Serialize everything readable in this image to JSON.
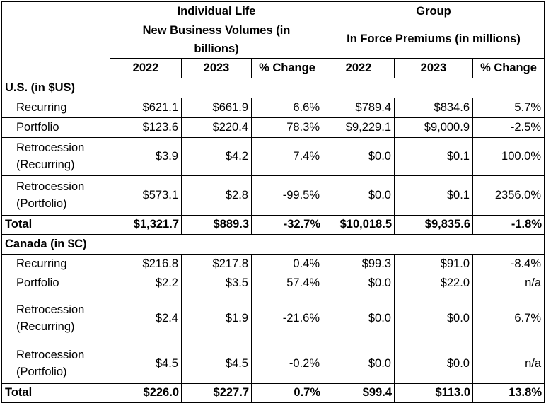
{
  "header": {
    "individual_title": "Individual Life",
    "individual_subtitle_line1": "New Business Volumes (in",
    "individual_subtitle_line2": "billions)",
    "group_title": "Group",
    "group_subtitle": "In Force Premiums (in millions)",
    "col_2022": "2022",
    "col_2023": "2023",
    "col_change": "% Change"
  },
  "us": {
    "heading": "U.S. (in $US)",
    "rows": [
      {
        "label1": "Recurring",
        "label2": "",
        "v": [
          "$621.1",
          "$661.9",
          "6.6%",
          "$789.4",
          "$834.6",
          "5.7%"
        ]
      },
      {
        "label1": "Portfolio",
        "label2": "",
        "v": [
          "$123.6",
          "$220.4",
          "78.3%",
          "$9,229.1",
          "$9,000.9",
          "-2.5%"
        ]
      },
      {
        "label1": "Retrocession",
        "label2": "(Recurring)",
        "v": [
          "$3.9",
          "$4.2",
          "7.4%",
          "$0.0",
          "$0.1",
          "100.0%"
        ]
      },
      {
        "label1": "Retrocession",
        "label2": "(Portfolio)",
        "v": [
          "$573.1",
          "$2.8",
          "-99.5%",
          "$0.0",
          "$0.1",
          "2356.0%"
        ]
      }
    ],
    "total": {
      "label": "Total",
      "v": [
        "$1,321.7",
        "$889.3",
        "-32.7%",
        "$10,018.5",
        "$9,835.6",
        "-1.8%"
      ]
    }
  },
  "canada": {
    "heading": "Canada (in $C)",
    "rows": [
      {
        "label1": "Recurring",
        "label2": "",
        "v": [
          "$216.8",
          "$217.8",
          "0.4%",
          "$99.3",
          "$91.0",
          "-8.4%"
        ]
      },
      {
        "label1": "Portfolio",
        "label2": "",
        "v": [
          "$2.2",
          "$3.5",
          "57.4%",
          "$0.0",
          "$22.0",
          "n/a"
        ]
      },
      {
        "label1": "Retrocession",
        "label2": "(Recurring)",
        "v": [
          "$2.4",
          "$1.9",
          "-21.6%",
          "$0.0",
          "$0.0",
          "6.7%"
        ]
      },
      {
        "label1": "Retrocession",
        "label2": "(Portfolio)",
        "v": [
          "$4.5",
          "$4.5",
          "-0.2%",
          "$0.0",
          "$0.0",
          "n/a"
        ]
      }
    ],
    "total": {
      "label": "Total",
      "v": [
        "$226.0",
        "$227.7",
        "0.7%",
        "$99.4",
        "$113.0",
        "13.8%"
      ]
    }
  }
}
